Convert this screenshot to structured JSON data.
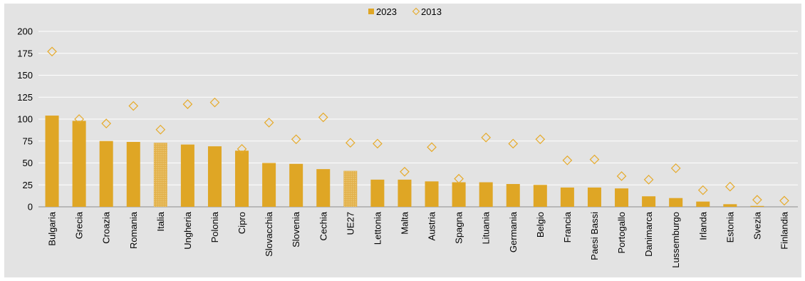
{
  "chart_data": {
    "type": "bar",
    "title": "",
    "xlabel": "",
    "ylabel": "",
    "ylim": [
      0,
      200
    ],
    "yticks": [
      0,
      25,
      50,
      75,
      100,
      125,
      150,
      175,
      200
    ],
    "grid": true,
    "legend_position": "top-center",
    "categories": [
      "Bulgaria",
      "Grecia",
      "Croazia",
      "Romania",
      "Italia",
      "Ungheria",
      "Polonia",
      "Cipro",
      "Slovacchia",
      "Slovenia",
      "Cechia",
      "UE27",
      "Lettonia",
      "Malta",
      "Austria",
      "Spagna",
      "Lituania",
      "Germania",
      "Belgio",
      "Francia",
      "Paesi Bassi",
      "Portogallo",
      "Danimarca",
      "Lussemburgo",
      "Irlanda",
      "Estonia",
      "Svezia",
      "Finlandia"
    ],
    "highlighted_categories": [
      "Italia",
      "UE27"
    ],
    "series": [
      {
        "name": "2023",
        "style": "bar",
        "color": "#dfa625",
        "values": [
          104,
          98,
          75,
          74,
          73,
          71,
          69,
          64,
          50,
          49,
          43,
          41,
          31,
          31,
          29,
          28,
          28,
          26,
          25,
          22,
          22,
          21,
          12,
          10,
          6,
          3,
          1,
          0
        ]
      },
      {
        "name": "2013",
        "style": "diamond-marker",
        "color": "#e6aa2a",
        "values": [
          177,
          100,
          95,
          115,
          88,
          117,
          119,
          66,
          96,
          77,
          102,
          73,
          72,
          40,
          68,
          32,
          79,
          72,
          77,
          53,
          54,
          35,
          31,
          44,
          19,
          23,
          8,
          7
        ]
      }
    ]
  }
}
